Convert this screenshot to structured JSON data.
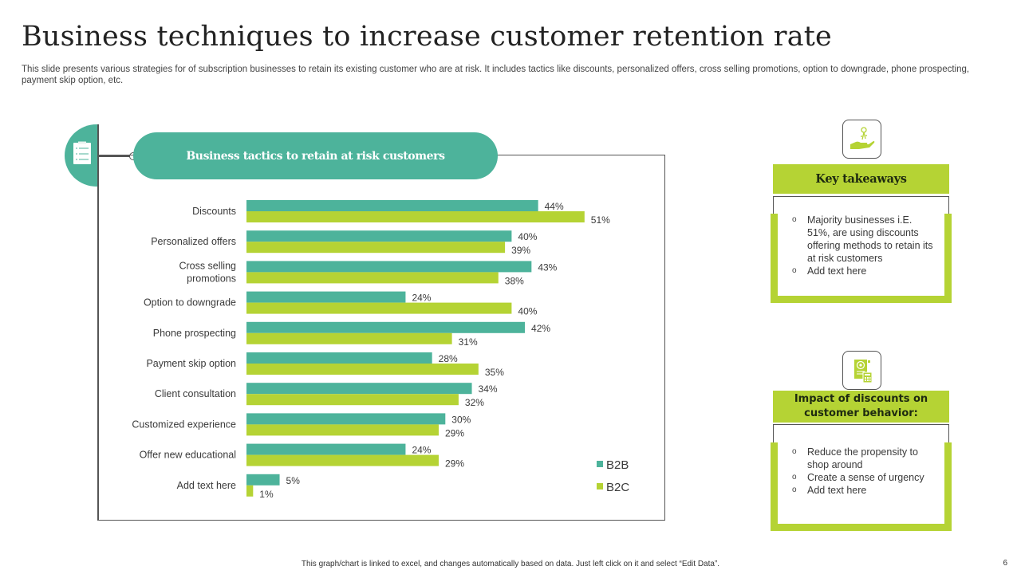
{
  "slide": {
    "title": "Business techniques to increase customer retention rate",
    "subtitle": "This slide presents various strategies for of subscription businesses to retain its existing customer who are at risk. It includes tactics like discounts, personalized offers, cross selling promotions, option to downgrade, phone prospecting, payment skip option, etc.",
    "footer_note": "This graph/chart is linked to excel, and changes automatically based on data. Just left click on it and select “Edit Data”.",
    "page_number": "6"
  },
  "colors": {
    "teal": "#4db39b",
    "lime": "#b5d334",
    "frame": "#555555"
  },
  "chart_header": {
    "label": "Business tactics to retain at risk customers",
    "icon": "clipboard-checklist-icon"
  },
  "chart_data": {
    "type": "bar",
    "orientation": "horizontal",
    "title": "Business tactics to retain at risk customers",
    "xlabel": "",
    "ylabel": "",
    "xlim": [
      0,
      55
    ],
    "grid": false,
    "legend_position": "bottom-right",
    "value_suffix": "%",
    "categories": [
      [
        "Discounts"
      ],
      [
        "Personalized offers"
      ],
      [
        "Cross selling",
        "promotions"
      ],
      [
        "Option to downgrade"
      ],
      [
        "Phone prospecting"
      ],
      [
        "Payment skip option"
      ],
      [
        "Client consultation"
      ],
      [
        "Customized experience"
      ],
      [
        "Offer new educational"
      ],
      [
        "Add text here"
      ]
    ],
    "series": [
      {
        "name": "B2B",
        "color": "#4db39b",
        "values": [
          44,
          40,
          43,
          24,
          42,
          28,
          34,
          30,
          24,
          5
        ]
      },
      {
        "name": "B2C",
        "color": "#b5d334",
        "values": [
          51,
          39,
          38,
          40,
          31,
          35,
          32,
          29,
          29,
          1
        ]
      }
    ]
  },
  "key_takeaways": {
    "icon": "hand-holding-keys-icon",
    "heading": "Key takeaways",
    "bullets": [
      "Majority businesses i.E. 51%, are using discounts offering  methods to retain its at risk customers",
      "Add text here"
    ]
  },
  "impact_panel": {
    "icon": "receipt-calculator-icon",
    "heading": "Impact of discounts on customer behavior:",
    "bullets": [
      "Reduce the propensity to shop around",
      "Create a sense of urgency",
      "Add text here"
    ]
  }
}
